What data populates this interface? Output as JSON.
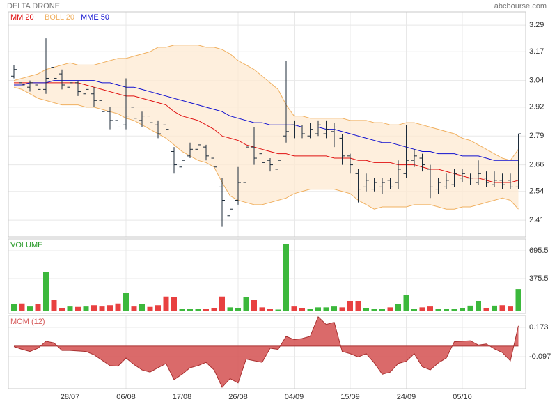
{
  "chart_data": [
    {
      "type": "ohlc",
      "title": "DELTA DRONE",
      "source": "abcbourse.com",
      "categories": [
        null,
        null,
        null,
        null,
        null,
        null,
        null,
        "28/07",
        null,
        null,
        null,
        null,
        null,
        null,
        "06/08",
        null,
        null,
        null,
        null,
        null,
        null,
        "17/08",
        null,
        null,
        null,
        null,
        null,
        null,
        "26/08",
        null,
        null,
        null,
        null,
        null,
        null,
        "04/09",
        null,
        null,
        null,
        null,
        null,
        null,
        "15/09",
        null,
        null,
        null,
        null,
        null,
        null,
        "24/09",
        null,
        null,
        null,
        null,
        null,
        null,
        "05/10",
        null,
        null,
        null,
        null,
        null,
        null,
        null
      ],
      "open": [
        3.06,
        3.03,
        3.01,
        3.02,
        3.0,
        3.1,
        3.07,
        3.01,
        3.03,
        2.98,
        2.98,
        2.95,
        2.9,
        2.86,
        2.84,
        2.92,
        2.86,
        2.88,
        2.84,
        2.84,
        2.72,
        2.65,
        2.7,
        2.73,
        2.74,
        2.69,
        2.56,
        2.43,
        2.5,
        2.58,
        2.74,
        2.71,
        2.68,
        2.64,
        2.79,
        2.84,
        2.83,
        2.79,
        2.8,
        2.8,
        2.81,
        2.78,
        2.7,
        2.62,
        2.56,
        2.55,
        2.56,
        2.59,
        2.58,
        2.62,
        2.68,
        2.69,
        2.64,
        2.55,
        2.56,
        2.57,
        2.6,
        2.6,
        2.58,
        2.6,
        2.57,
        2.59,
        2.59,
        2.56
      ],
      "high": [
        3.11,
        3.13,
        3.04,
        3.04,
        3.23,
        3.11,
        3.09,
        3.06,
        3.04,
        3.03,
        3.01,
        2.96,
        2.92,
        2.88,
        3.05,
        2.94,
        2.9,
        2.89,
        2.86,
        2.85,
        2.74,
        2.7,
        2.76,
        2.76,
        2.75,
        2.7,
        2.6,
        2.55,
        2.65,
        2.76,
        2.83,
        2.72,
        2.69,
        2.69,
        3.13,
        2.86,
        2.84,
        2.85,
        2.86,
        2.86,
        2.85,
        2.8,
        2.71,
        2.64,
        2.62,
        2.6,
        2.6,
        2.6,
        2.68,
        2.84,
        2.73,
        2.71,
        2.66,
        2.6,
        2.62,
        2.64,
        2.64,
        2.62,
        2.68,
        2.63,
        2.63,
        2.62,
        2.62,
        2.8
      ],
      "low": [
        3.05,
        2.99,
        2.99,
        2.96,
        2.98,
        3.01,
        3.0,
        2.99,
        2.97,
        2.96,
        2.92,
        2.86,
        2.82,
        2.79,
        2.82,
        2.84,
        2.83,
        2.82,
        2.78,
        2.8,
        2.62,
        2.63,
        2.69,
        2.7,
        2.68,
        2.6,
        2.38,
        2.4,
        2.48,
        2.57,
        2.66,
        2.66,
        2.63,
        2.63,
        2.76,
        2.78,
        2.78,
        2.78,
        2.79,
        2.78,
        2.74,
        2.66,
        2.62,
        2.49,
        2.54,
        2.54,
        2.53,
        2.55,
        2.55,
        2.6,
        2.65,
        2.63,
        2.51,
        2.53,
        2.55,
        2.56,
        2.58,
        2.57,
        2.57,
        2.56,
        2.56,
        2.55,
        2.55,
        2.55
      ],
      "close": [
        3.09,
        3.02,
        3.03,
        3.0,
        3.05,
        3.05,
        3.02,
        3.03,
        2.99,
        3.0,
        2.95,
        2.9,
        2.86,
        2.83,
        2.88,
        2.87,
        2.88,
        2.85,
        2.8,
        2.82,
        2.66,
        2.68,
        2.73,
        2.75,
        2.7,
        2.65,
        2.5,
        2.46,
        2.58,
        2.74,
        2.69,
        2.67,
        2.66,
        2.68,
        2.81,
        2.83,
        2.8,
        2.82,
        2.84,
        2.82,
        2.83,
        2.7,
        2.66,
        2.55,
        2.59,
        2.58,
        2.58,
        2.56,
        2.64,
        2.68,
        2.7,
        2.66,
        2.56,
        2.58,
        2.59,
        2.62,
        2.62,
        2.6,
        2.62,
        2.58,
        2.59,
        2.57,
        2.56,
        2.8
      ],
      "color": "#1c2b3a",
      "series": [
        {
          "name": "MM 20",
          "color": "#e01010",
          "values": [
            3.03,
            3.03,
            3.03,
            3.03,
            3.03,
            3.03,
            3.03,
            3.03,
            3.03,
            3.02,
            3.01,
            3.0,
            2.99,
            2.98,
            2.97,
            2.97,
            2.96,
            2.95,
            2.94,
            2.93,
            2.9,
            2.88,
            2.87,
            2.86,
            2.84,
            2.82,
            2.79,
            2.78,
            2.77,
            2.75,
            2.74,
            2.73,
            2.72,
            2.71,
            2.71,
            2.7,
            2.7,
            2.7,
            2.7,
            2.7,
            2.69,
            2.69,
            2.69,
            2.68,
            2.68,
            2.67,
            2.67,
            2.67,
            2.66,
            2.66,
            2.66,
            2.65,
            2.64,
            2.64,
            2.63,
            2.62,
            2.61,
            2.6,
            2.6,
            2.59,
            2.58,
            2.58,
            2.58,
            2.59
          ]
        },
        {
          "name": "BOLL 20",
          "color": "#f0b060",
          "upper": [
            3.04,
            3.05,
            3.06,
            3.07,
            3.09,
            3.1,
            3.11,
            3.12,
            3.11,
            3.11,
            3.11,
            3.12,
            3.13,
            3.14,
            3.14,
            3.15,
            3.16,
            3.17,
            3.19,
            3.19,
            3.2,
            3.2,
            3.2,
            3.2,
            3.19,
            3.19,
            3.18,
            3.16,
            3.13,
            3.11,
            3.09,
            3.06,
            3.03,
            3.0,
            2.93,
            2.88,
            2.88,
            2.87,
            2.87,
            2.87,
            2.87,
            2.87,
            2.86,
            2.86,
            2.86,
            2.85,
            2.85,
            2.84,
            2.84,
            2.85,
            2.85,
            2.84,
            2.83,
            2.82,
            2.81,
            2.8,
            2.78,
            2.77,
            2.75,
            2.73,
            2.71,
            2.69,
            2.68,
            2.73
          ],
          "lower": [
            3.01,
            3.0,
            2.98,
            2.96,
            2.95,
            2.94,
            2.93,
            2.93,
            2.93,
            2.92,
            2.92,
            2.91,
            2.9,
            2.89,
            2.87,
            2.86,
            2.84,
            2.82,
            2.8,
            2.78,
            2.75,
            2.72,
            2.7,
            2.68,
            2.67,
            2.65,
            2.58,
            2.52,
            2.5,
            2.49,
            2.48,
            2.48,
            2.49,
            2.5,
            2.51,
            2.53,
            2.54,
            2.55,
            2.55,
            2.55,
            2.55,
            2.54,
            2.53,
            2.5,
            2.48,
            2.46,
            2.47,
            2.47,
            2.47,
            2.47,
            2.48,
            2.48,
            2.48,
            2.47,
            2.46,
            2.46,
            2.47,
            2.47,
            2.48,
            2.49,
            2.5,
            2.51,
            2.5,
            2.46
          ]
        },
        {
          "name": "MME 50",
          "color": "#1010d0",
          "values": [
            3.02,
            3.02,
            3.03,
            3.03,
            3.03,
            3.04,
            3.04,
            3.04,
            3.04,
            3.04,
            3.04,
            3.03,
            3.03,
            3.02,
            3.01,
            3.01,
            3.0,
            2.99,
            2.98,
            2.97,
            2.96,
            2.95,
            2.94,
            2.93,
            2.92,
            2.91,
            2.9,
            2.88,
            2.87,
            2.86,
            2.85,
            2.85,
            2.84,
            2.84,
            2.84,
            2.84,
            2.83,
            2.83,
            2.83,
            2.82,
            2.82,
            2.81,
            2.8,
            2.79,
            2.78,
            2.77,
            2.76,
            2.76,
            2.75,
            2.74,
            2.73,
            2.72,
            2.72,
            2.71,
            2.71,
            2.71,
            2.7,
            2.7,
            2.7,
            2.69,
            2.68,
            2.68,
            2.68,
            2.68
          ]
        }
      ],
      "ylim": [
        2.335,
        3.35
      ],
      "yticks": [
        3.29,
        3.17,
        3.04,
        2.92,
        2.79,
        2.66,
        2.54,
        2.41
      ],
      "grid": true
    },
    {
      "type": "bar",
      "title": "VOLUME",
      "up_color": "#3cb83c",
      "down_color": "#e84040",
      "values": [
        80,
        90,
        55,
        80,
        450,
        135,
        40,
        55,
        50,
        55,
        70,
        55,
        70,
        90,
        210,
        55,
        80,
        50,
        70,
        170,
        160,
        25,
        25,
        30,
        30,
        40,
        170,
        45,
        40,
        160,
        135,
        45,
        30,
        20,
        775,
        55,
        40,
        30,
        45,
        45,
        55,
        45,
        120,
        120,
        40,
        30,
        30,
        45,
        80,
        190,
        30,
        45,
        55,
        30,
        25,
        25,
        40,
        65,
        120,
        40,
        65,
        70,
        55,
        255
      ],
      "ylim": [
        0,
        831.5
      ],
      "yticks": [
        695.5,
        375.5
      ],
      "grid": true
    },
    {
      "type": "area",
      "title": "MOM (12)",
      "color": "#d65a5a",
      "values": [
        -0.005,
        -0.03,
        -0.05,
        -0.02,
        0.045,
        0.03,
        -0.04,
        -0.04,
        -0.045,
        -0.05,
        -0.08,
        -0.13,
        -0.18,
        -0.185,
        -0.11,
        -0.17,
        -0.22,
        -0.24,
        -0.2,
        -0.16,
        -0.31,
        -0.26,
        -0.2,
        -0.18,
        -0.15,
        -0.22,
        -0.38,
        -0.3,
        -0.34,
        -0.12,
        -0.135,
        -0.15,
        -0.02,
        -0.03,
        0.09,
        0.06,
        0.07,
        0.09,
        0.27,
        0.2,
        0.22,
        -0.05,
        -0.07,
        -0.1,
        -0.07,
        -0.155,
        -0.26,
        -0.24,
        -0.16,
        -0.14,
        -0.07,
        -0.19,
        -0.22,
        -0.155,
        -0.11,
        0.04,
        0.045,
        0.05,
        0.01,
        0.02,
        -0.025,
        -0.06,
        -0.135,
        0.187
      ],
      "ylim": [
        -0.393,
        0.282
      ],
      "yticks": [
        0.173,
        -0.097
      ],
      "grid": true
    }
  ]
}
